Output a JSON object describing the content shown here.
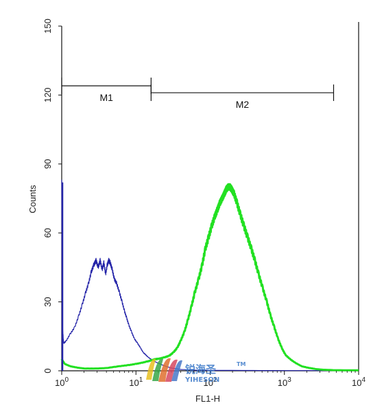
{
  "chart_data": {
    "type": "line",
    "title": "",
    "xlabel": "FL1-H",
    "ylabel": "Counts",
    "x_scale": "log",
    "xlim": [
      1,
      10000
    ],
    "ylim": [
      0,
      150
    ],
    "x_ticks": [
      {
        "base": "10",
        "exp": "0"
      },
      {
        "base": "10",
        "exp": "1"
      },
      {
        "base": "10",
        "exp": "2"
      },
      {
        "base": "10",
        "exp": "3"
      },
      {
        "base": "10",
        "exp": "4"
      }
    ],
    "y_ticks": [
      "0",
      "30",
      "60",
      "90",
      "120",
      "150"
    ],
    "grid": false,
    "series": [
      {
        "color": "#2424a8",
        "points": [
          [
            1.0,
            82
          ],
          [
            1.02,
            20
          ],
          [
            1.06,
            12
          ],
          [
            1.15,
            13
          ],
          [
            1.3,
            16
          ],
          [
            1.5,
            19
          ],
          [
            1.7,
            24
          ],
          [
            1.9,
            29
          ],
          [
            2.1,
            34
          ],
          [
            2.3,
            38
          ],
          [
            2.5,
            43
          ],
          [
            2.7,
            46
          ],
          [
            2.9,
            48
          ],
          [
            3.1,
            45
          ],
          [
            3.3,
            48
          ],
          [
            3.5,
            44
          ],
          [
            3.7,
            47
          ],
          [
            3.9,
            42
          ],
          [
            4.1,
            46
          ],
          [
            4.3,
            48
          ],
          [
            4.5,
            47
          ],
          [
            4.8,
            44
          ],
          [
            5.1,
            40
          ],
          [
            5.5,
            38
          ],
          [
            6.0,
            34
          ],
          [
            6.5,
            30
          ],
          [
            7.0,
            26
          ],
          [
            7.5,
            23
          ],
          [
            8.0,
            20
          ],
          [
            8.7,
            17
          ],
          [
            9.5,
            14
          ],
          [
            10.5,
            12
          ],
          [
            11.5,
            10
          ],
          [
            12.5,
            8
          ],
          [
            13.5,
            7
          ],
          [
            14.5,
            6
          ],
          [
            16,
            5
          ],
          [
            18,
            4
          ],
          [
            21,
            3
          ],
          [
            25,
            2
          ],
          [
            30,
            1.2
          ],
          [
            40,
            0.6
          ],
          [
            60,
            0.3
          ],
          [
            100,
            0.2
          ],
          [
            1000,
            0.1
          ],
          [
            10000,
            0.1
          ]
        ]
      },
      {
        "color": "#22e022",
        "points": [
          [
            1.0,
            5
          ],
          [
            1.1,
            3
          ],
          [
            1.3,
            2
          ],
          [
            1.6,
            1.4
          ],
          [
            2,
            1
          ],
          [
            3,
            1
          ],
          [
            4,
            1.2
          ],
          [
            6,
            2
          ],
          [
            8,
            2.5
          ],
          [
            10,
            3
          ],
          [
            12,
            3.5
          ],
          [
            14,
            4
          ],
          [
            16,
            4.5
          ],
          [
            18,
            5
          ],
          [
            20,
            5.2
          ],
          [
            24,
            5.8
          ],
          [
            28,
            6.5
          ],
          [
            32,
            8
          ],
          [
            36,
            10
          ],
          [
            40,
            13
          ],
          [
            45,
            17
          ],
          [
            50,
            22
          ],
          [
            56,
            28
          ],
          [
            62,
            34
          ],
          [
            70,
            40
          ],
          [
            78,
            46
          ],
          [
            86,
            53
          ],
          [
            95,
            58
          ],
          [
            105,
            63
          ],
          [
            115,
            67
          ],
          [
            125,
            70
          ],
          [
            135,
            73
          ],
          [
            145,
            75
          ],
          [
            155,
            77
          ],
          [
            165,
            79
          ],
          [
            175,
            80
          ],
          [
            185,
            80
          ],
          [
            195,
            79
          ],
          [
            210,
            77
          ],
          [
            230,
            73
          ],
          [
            255,
            68
          ],
          [
            285,
            63
          ],
          [
            320,
            58
          ],
          [
            360,
            53
          ],
          [
            400,
            48
          ],
          [
            450,
            42
          ],
          [
            510,
            36
          ],
          [
            580,
            30
          ],
          [
            650,
            24
          ],
          [
            730,
            19
          ],
          [
            820,
            14
          ],
          [
            920,
            10
          ],
          [
            1030,
            7
          ],
          [
            1200,
            5
          ],
          [
            1400,
            3.5
          ],
          [
            1700,
            2
          ],
          [
            2100,
            1.3
          ],
          [
            2600,
            0.8
          ],
          [
            3200,
            0.5
          ],
          [
            4500,
            0.3
          ],
          [
            10000,
            0.2
          ]
        ]
      }
    ],
    "markers": [
      {
        "label": "M1",
        "x_start": 1,
        "x_end": 16,
        "y": 124
      },
      {
        "label": "M2",
        "x_start": 16,
        "x_end": 4600,
        "y": 121
      }
    ]
  },
  "watermark": {
    "brand_cn": "锐海圣",
    "brand_en": "YIHESON",
    "trademark": "TM"
  }
}
